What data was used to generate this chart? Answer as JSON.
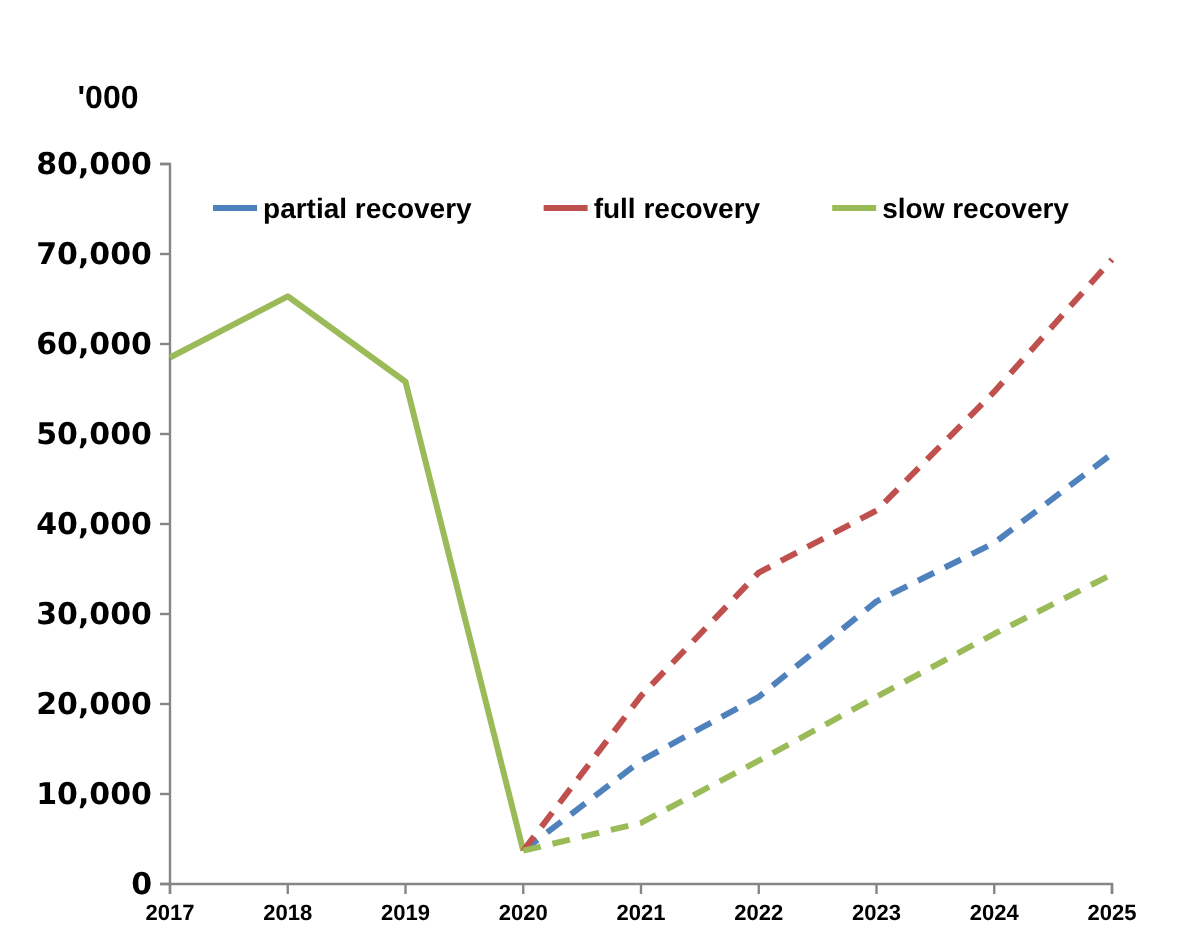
{
  "chart_data": {
    "type": "line",
    "ylabel": "'000",
    "xlim": [
      2017,
      2025
    ],
    "xticks": [
      2017,
      2018,
      2019,
      2020,
      2021,
      2022,
      2023,
      2024,
      2025
    ],
    "ylim": [
      0,
      80000
    ],
    "yticks": [
      0,
      {
        "value": 10000,
        "label": "10,000"
      },
      {
        "value": 20000,
        "label": "20,000"
      },
      {
        "value": 30000,
        "label": "30,000"
      },
      {
        "value": 40000,
        "label": "40,000"
      },
      {
        "value": 50000,
        "label": "50,000"
      },
      {
        "value": 60000,
        "label": "60,000"
      },
      {
        "value": 70000,
        "label": "70,000"
      },
      {
        "value": 80000,
        "label": "80,000"
      }
    ],
    "grid": false,
    "legend": "top",
    "marker": "none",
    "series": [
      {
        "color": "#9bbb59",
        "line_style": "solid",
        "x": [
          2017,
          2018,
          2019,
          2020
        ],
        "values": [
          58500,
          65300,
          55800,
          3700
        ]
      },
      {
        "name": "partial recovery",
        "color": "#4f81bd",
        "line_style": "dashed",
        "x": [
          2020,
          2021,
          2022,
          2023,
          2024,
          2025
        ],
        "values": [
          3700,
          13700,
          20800,
          31400,
          37900,
          47800
        ]
      },
      {
        "name": "full recovery",
        "color": "#c0504d",
        "line_style": "dashed",
        "x": [
          2020,
          2021,
          2022,
          2023,
          2024,
          2025
        ],
        "values": [
          3700,
          20900,
          34600,
          41500,
          54700,
          69400
        ]
      },
      {
        "name": "slow recovery",
        "color": "#9bbb59",
        "line_style": "dashed",
        "x": [
          2020,
          2021,
          2022,
          2023,
          2024,
          2025
        ],
        "values": [
          3700,
          6800,
          13700,
          20800,
          27800,
          34400
        ]
      }
    ]
  }
}
